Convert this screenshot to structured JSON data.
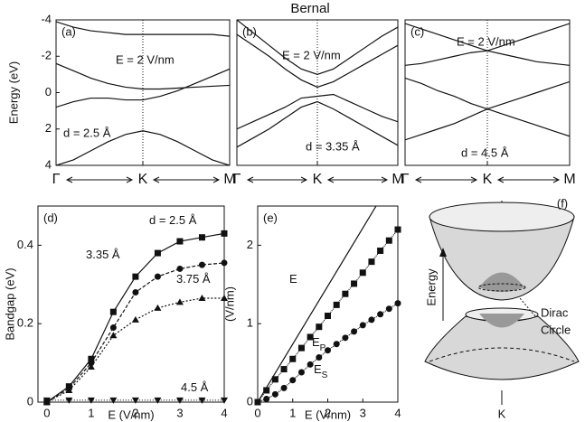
{
  "title": "Bernal",
  "chart_data": [
    {
      "type": "line",
      "panel_label": "(a)",
      "ylabel": "Energy (eV)",
      "annotations": [
        "E = 2 V/nm",
        "d = 2.5 Å"
      ],
      "x": [
        0,
        0.1,
        0.2,
        0.3,
        0.4,
        0.5,
        0.6,
        0.7,
        0.8,
        0.9,
        1
      ],
      "xlim": [
        0,
        1
      ],
      "xticks": [
        {
          "value": 0,
          "label": "Γ"
        },
        {
          "value": 0.5,
          "label": "K"
        },
        {
          "value": 1,
          "label": "M"
        }
      ],
      "ylim": [
        -4,
        4
      ],
      "y_inverted": true,
      "yticks": [
        -4,
        -2,
        0,
        2,
        4
      ],
      "series": [
        {
          "values": [
            -3.9,
            -3.6,
            -3.4,
            -3.3,
            -3.2,
            -3.2,
            -3.2,
            -3.2,
            -3.2,
            -3.2,
            -3.1
          ]
        },
        {
          "values": [
            -1.6,
            -1.2,
            -0.8,
            -0.5,
            -0.3,
            -0.2,
            -0.2,
            -0.25,
            -0.3,
            -0.35,
            -0.4
          ]
        },
        {
          "values": [
            0.8,
            0.5,
            0.3,
            0.3,
            0.4,
            0.4,
            0.2,
            -0.1,
            -0.5,
            -0.9,
            -1.3
          ]
        },
        {
          "values": [
            4,
            3.7,
            3.2,
            2.7,
            2.3,
            2.1,
            2.3,
            2.7,
            3.2,
            3.7,
            4
          ]
        }
      ]
    },
    {
      "type": "line",
      "panel_label": "(b)",
      "annotations": [
        "E = 2 V/nm",
        "d = 3.35 Å"
      ],
      "x": [
        0,
        0.1,
        0.2,
        0.3,
        0.4,
        0.5,
        0.6,
        0.7,
        0.8,
        0.9,
        1
      ],
      "xlim": [
        0,
        1
      ],
      "xticks": [
        {
          "value": 0,
          "label": "Γ"
        },
        {
          "value": 0.5,
          "label": "K"
        },
        {
          "value": 1,
          "label": "M"
        }
      ],
      "ylim": [
        -4,
        4
      ],
      "y_inverted": true,
      "series": [
        {
          "values": [
            -4,
            -3.3,
            -2.6,
            -1.9,
            -1.3,
            -1.0,
            -1.3,
            -1.9,
            -2.5,
            -3.1,
            -3.6
          ]
        },
        {
          "values": [
            -3.2,
            -2.6,
            -2.0,
            -1.3,
            -0.7,
            -0.3,
            -0.6,
            -1.1,
            -1.6,
            -2.1,
            -2.6
          ]
        },
        {
          "values": [
            2.0,
            1.6,
            1.2,
            0.8,
            0.3,
            0.2,
            0.1,
            0.5,
            0.9,
            1.3,
            1.6
          ]
        },
        {
          "values": [
            3.0,
            2.5,
            2.0,
            1.4,
            0.8,
            0.5,
            0.9,
            1.4,
            1.9,
            2.4,
            2.9
          ]
        }
      ]
    },
    {
      "type": "line",
      "panel_label": "(c)",
      "annotations": [
        "E = 2 V/nm",
        "d = 4.5 Å"
      ],
      "x": [
        0,
        0.1,
        0.2,
        0.3,
        0.4,
        0.5,
        0.6,
        0.7,
        0.8,
        0.9,
        1
      ],
      "xlim": [
        0,
        1
      ],
      "xticks": [
        {
          "value": 0,
          "label": "Γ"
        },
        {
          "value": 0.5,
          "label": "K"
        },
        {
          "value": 1,
          "label": "M"
        }
      ],
      "ylim": [
        -4,
        4
      ],
      "y_inverted": true,
      "series": [
        {
          "values": [
            -1.5,
            -1.6,
            -1.8,
            -2.0,
            -2.2,
            -2.3,
            -2.6,
            -2.9,
            -3.2,
            -3.5,
            -3.8
          ]
        },
        {
          "values": [
            -3.8,
            -3.5,
            -3.2,
            -2.9,
            -2.6,
            -2.3,
            -2.1,
            -1.9,
            -1.7,
            -1.6,
            -1.5
          ]
        },
        {
          "values": [
            -0.8,
            -0.5,
            -0.1,
            0.2,
            0.6,
            0.9,
            1.2,
            1.5,
            1.8,
            2.1,
            2.4
          ]
        },
        {
          "values": [
            2.6,
            2.3,
            2.0,
            1.7,
            1.3,
            0.9,
            0.6,
            0.3,
            0.0,
            -0.3,
            -0.6
          ]
        }
      ]
    },
    {
      "type": "line",
      "panel_label": "(d)",
      "xlabel": "E (V/nm)",
      "ylabel": "Bandgap (eV)",
      "xlim": [
        -0.2,
        4
      ],
      "ylim": [
        0,
        0.5
      ],
      "xticks": [
        0,
        1,
        2,
        3,
        4
      ],
      "yticks": [
        0,
        0.2,
        0.4
      ],
      "series": [
        {
          "name": "d = 2.5 Å",
          "marker": "square",
          "x": [
            0,
            0.5,
            1,
            1.5,
            2,
            2.5,
            3,
            3.5,
            4
          ],
          "values": [
            0,
            0.04,
            0.11,
            0.23,
            0.32,
            0.38,
            0.41,
            0.42,
            0.43
          ]
        },
        {
          "name": "3.35 Å",
          "marker": "circle",
          "x": [
            0,
            0.5,
            1,
            1.5,
            2,
            2.5,
            3,
            3.5,
            4
          ],
          "values": [
            0,
            0.035,
            0.1,
            0.19,
            0.28,
            0.32,
            0.34,
            0.35,
            0.355
          ]
        },
        {
          "name": "3.75 Å",
          "marker": "triangle",
          "x": [
            0,
            0.5,
            1,
            1.5,
            2,
            2.5,
            3,
            3.5,
            4
          ],
          "values": [
            0,
            0.03,
            0.09,
            0.17,
            0.21,
            0.24,
            0.255,
            0.265,
            0.265
          ]
        },
        {
          "name": "4.5 Å",
          "marker": "triangle-down",
          "x": [
            0,
            0.5,
            1,
            1.5,
            2,
            2.5,
            3,
            3.5,
            4
          ],
          "values": [
            0.005,
            0.005,
            0.005,
            0.005,
            0.005,
            0.005,
            0.005,
            0.005,
            0.005
          ]
        }
      ]
    },
    {
      "type": "line",
      "panel_label": "(e)",
      "xlabel": "E (V/nm)",
      "ylabel": "(V/nm)",
      "xlim": [
        0,
        4
      ],
      "ylim": [
        0,
        2.5
      ],
      "xticks": [
        0,
        1,
        2,
        3,
        4
      ],
      "yticks": [
        0,
        1,
        2
      ],
      "series": [
        {
          "name": "E",
          "marker": "none",
          "x": [
            0,
            3.38
          ],
          "values": [
            0,
            2.5
          ]
        },
        {
          "name": "E",
          "name_sub": "P",
          "marker": "square",
          "x": [
            0,
            0.25,
            0.5,
            0.75,
            1,
            1.25,
            1.5,
            1.75,
            2,
            2.25,
            2.5,
            2.75,
            3,
            3.25,
            3.5,
            3.75,
            4
          ],
          "values": [
            0,
            0.15,
            0.29,
            0.42,
            0.55,
            0.69,
            0.83,
            0.96,
            1.1,
            1.24,
            1.38,
            1.51,
            1.65,
            1.79,
            1.93,
            2.06,
            2.2
          ]
        },
        {
          "name": "E",
          "name_sub": "S",
          "marker": "circle",
          "x": [
            0,
            0.25,
            0.5,
            0.75,
            1,
            1.25,
            1.5,
            1.75,
            2,
            2.25,
            2.5,
            2.75,
            3,
            3.25,
            3.5,
            3.75,
            4
          ],
          "values": [
            0,
            0.04,
            0.1,
            0.18,
            0.28,
            0.38,
            0.48,
            0.57,
            0.66,
            0.74,
            0.82,
            0.9,
            0.98,
            1.05,
            1.12,
            1.19,
            1.26
          ]
        }
      ]
    }
  ],
  "diagram": {
    "panel_label": "(f)",
    "axis_label": "Energy",
    "annotation": [
      "Dirac",
      "Circle"
    ],
    "point_label": "K"
  }
}
